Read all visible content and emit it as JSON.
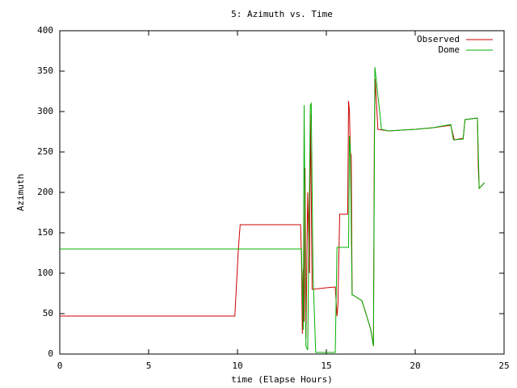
{
  "chart_data": {
    "type": "line",
    "title": "5: Azimuth vs. Time",
    "x_label": "time (Elapse Hours)",
    "y_label": "Azimuth",
    "xlim": [
      0,
      25
    ],
    "xticks": [
      0,
      5,
      10,
      15,
      20,
      25
    ],
    "ylim": [
      0,
      400
    ],
    "yticks": [
      0,
      50,
      100,
      150,
      200,
      250,
      300,
      350,
      400
    ],
    "grid": false,
    "legend": "top-right",
    "series": [
      {
        "name": "Observed",
        "color": "#cc0000",
        "x": [
          0,
          9.85,
          10.05,
          10.15,
          13.55,
          13.6,
          13.65,
          13.7,
          13.75,
          13.8,
          13.85,
          13.95,
          14.05,
          14.1,
          14.15,
          14.2,
          15.0,
          15.5,
          15.6,
          15.65,
          15.75,
          16.2,
          16.25,
          16.3,
          16.35,
          16.4,
          16.45,
          16.5,
          17.0,
          17.3,
          17.5,
          17.65,
          17.7,
          17.75,
          17.9,
          18.5,
          20.0,
          21.0,
          22.0,
          22.2,
          22.7,
          22.8,
          23.5,
          23.55,
          23.6,
          23.9
        ],
        "values": [
          47,
          47,
          130,
          160,
          160,
          120,
          25,
          105,
          40,
          230,
          20,
          200,
          100,
          297,
          200,
          80,
          82,
          83,
          47,
          60,
          173,
          173,
          313,
          300,
          250,
          245,
          73,
          73,
          66,
          45,
          30,
          10,
          270,
          340,
          278,
          276,
          278,
          280,
          283,
          265,
          267,
          290,
          292,
          230,
          205,
          212
        ]
      },
      {
        "name": "Dome",
        "color": "#00b000",
        "x": [
          0,
          13.6,
          13.7,
          13.75,
          13.85,
          13.95,
          14.1,
          14.15,
          14.25,
          14.4,
          15.5,
          15.6,
          16.25,
          16.3,
          16.35,
          16.45,
          16.5,
          17.0,
          17.3,
          17.5,
          17.65,
          17.73,
          17.9,
          18.0,
          18.1,
          18.5,
          20.0,
          21.0,
          22.0,
          22.15,
          22.7,
          22.8,
          23.5,
          23.6,
          23.9
        ],
        "values": [
          130,
          130,
          30,
          308,
          10,
          5,
          308,
          310,
          100,
          2,
          2,
          132,
          132,
          270,
          250,
          73,
          73,
          66,
          45,
          30,
          10,
          355,
          320,
          300,
          278,
          276,
          278,
          280,
          284,
          265,
          266,
          290,
          292,
          205,
          212
        ]
      }
    ]
  }
}
